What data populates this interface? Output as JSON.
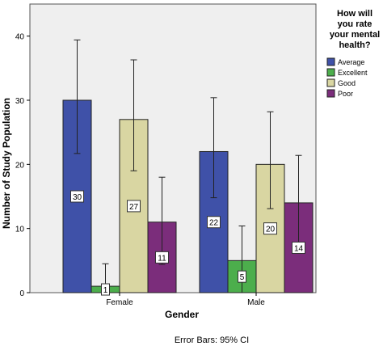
{
  "chart_data": {
    "type": "bar",
    "xlabel": "Gender",
    "ylabel": "Number of Study Population",
    "categories": [
      "Female",
      "Male"
    ],
    "ylim": [
      0,
      45
    ],
    "yticks": [
      0,
      10,
      20,
      30,
      40
    ],
    "grid": false,
    "legend": {
      "title": "How will you rate your mental health?",
      "title_lines": [
        "How will",
        "you rate",
        "your mental",
        "health?"
      ],
      "placement": "right"
    },
    "series": [
      {
        "name": "Average",
        "color": "#3f51a8",
        "values": [
          30,
          22
        ],
        "ci_low": [
          21.7,
          14.8
        ],
        "ci_high": [
          39.4,
          30.4
        ]
      },
      {
        "name": "Excellent",
        "color": "#4cae4c",
        "values": [
          1,
          5
        ],
        "ci_low": [
          0,
          0
        ],
        "ci_high": [
          4.5,
          10.4
        ]
      },
      {
        "name": "Good",
        "color": "#d9d6a2",
        "values": [
          27,
          20
        ],
        "ci_low": [
          19,
          13.1
        ],
        "ci_high": [
          36.3,
          28.2
        ]
      },
      {
        "name": "Poor",
        "color": "#7b2d7b",
        "values": [
          11,
          14
        ],
        "ci_low": [
          4.4,
          6.9
        ],
        "ci_high": [
          18,
          21.4
        ]
      }
    ],
    "data_labels": [
      [
        "30",
        "22"
      ],
      [
        "1",
        "5"
      ],
      [
        "27",
        "20"
      ],
      [
        "11",
        "14"
      ]
    ],
    "footnote": "Error Bars: 95% CI",
    "plot_background": "#efefef"
  }
}
